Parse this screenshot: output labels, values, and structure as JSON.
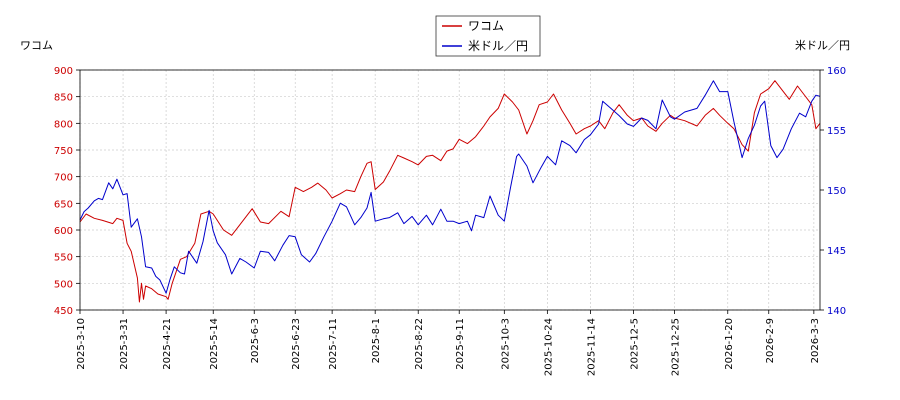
{
  "chart_data": {
    "type": "line",
    "left_axis_title": "ワコム",
    "right_axis_title": "米ドル／円",
    "legend": [
      "ワコム",
      "米ドル／円"
    ],
    "legend_placement": "top-center",
    "grid": true,
    "ylim_left": [
      450,
      900
    ],
    "yticks_left": [
      450,
      500,
      550,
      600,
      650,
      700,
      750,
      800,
      850,
      900
    ],
    "ylim_right": [
      140,
      160
    ],
    "yticks_right": [
      140,
      145,
      150,
      155,
      160
    ],
    "x_range": [
      "2025-03-10",
      "2026-03-06"
    ],
    "x_ticks": [
      "2025-3-10",
      "2025-3-31",
      "2025-4-21",
      "2025-5-14",
      "2025-6-3",
      "2025-6-23",
      "2025-7-11",
      "2025-8-1",
      "2025-8-22",
      "2025-9-11",
      "2025-10-3",
      "2025-10-24",
      "2025-11-14",
      "2025-12-5",
      "2025-12-25",
      "2026-1-20",
      "2026-2-9",
      "2026-3-3"
    ],
    "series": [
      {
        "name": "ワコム",
        "axis": "left",
        "color": "#cc0000",
        "points": [
          [
            "2025-03-10",
            615
          ],
          [
            "2025-03-13",
            630
          ],
          [
            "2025-03-17",
            622
          ],
          [
            "2025-03-21",
            618
          ],
          [
            "2025-03-26",
            612
          ],
          [
            "2025-03-28",
            622
          ],
          [
            "2025-03-31",
            618
          ],
          [
            "2025-04-02",
            575
          ],
          [
            "2025-04-04",
            560
          ],
          [
            "2025-04-07",
            510
          ],
          [
            "2025-04-08",
            465
          ],
          [
            "2025-04-09",
            500
          ],
          [
            "2025-04-10",
            470
          ],
          [
            "2025-04-11",
            495
          ],
          [
            "2025-04-14",
            490
          ],
          [
            "2025-04-17",
            480
          ],
          [
            "2025-04-21",
            475
          ],
          [
            "2025-04-22",
            470
          ],
          [
            "2025-04-24",
            500
          ],
          [
            "2025-04-28",
            545
          ],
          [
            "2025-05-01",
            550
          ],
          [
            "2025-05-05",
            575
          ],
          [
            "2025-05-08",
            630
          ],
          [
            "2025-05-12",
            635
          ],
          [
            "2025-05-14",
            630
          ],
          [
            "2025-05-19",
            600
          ],
          [
            "2025-05-23",
            590
          ],
          [
            "2025-05-27",
            610
          ],
          [
            "2025-06-02",
            640
          ],
          [
            "2025-06-06",
            615
          ],
          [
            "2025-06-10",
            612
          ],
          [
            "2025-06-16",
            635
          ],
          [
            "2025-06-20",
            625
          ],
          [
            "2025-06-23",
            680
          ],
          [
            "2025-06-27",
            672
          ],
          [
            "2025-07-01",
            680
          ],
          [
            "2025-07-04",
            688
          ],
          [
            "2025-07-08",
            675
          ],
          [
            "2025-07-11",
            660
          ],
          [
            "2025-07-15",
            668
          ],
          [
            "2025-07-18",
            675
          ],
          [
            "2025-07-22",
            672
          ],
          [
            "2025-07-25",
            700
          ],
          [
            "2025-07-28",
            725
          ],
          [
            "2025-07-30",
            728
          ],
          [
            "2025-08-01",
            676
          ],
          [
            "2025-08-05",
            690
          ],
          [
            "2025-08-08",
            710
          ],
          [
            "2025-08-12",
            740
          ],
          [
            "2025-08-15",
            735
          ],
          [
            "2025-08-19",
            728
          ],
          [
            "2025-08-22",
            722
          ],
          [
            "2025-08-26",
            738
          ],
          [
            "2025-08-29",
            740
          ],
          [
            "2025-09-02",
            730
          ],
          [
            "2025-09-05",
            748
          ],
          [
            "2025-09-08",
            752
          ],
          [
            "2025-09-11",
            770
          ],
          [
            "2025-09-15",
            762
          ],
          [
            "2025-09-19",
            775
          ],
          [
            "2025-09-23",
            795
          ],
          [
            "2025-09-26",
            812
          ],
          [
            "2025-09-30",
            828
          ],
          [
            "2025-10-03",
            855
          ],
          [
            "2025-10-07",
            840
          ],
          [
            "2025-10-10",
            825
          ],
          [
            "2025-10-14",
            780
          ],
          [
            "2025-10-17",
            805
          ],
          [
            "2025-10-20",
            835
          ],
          [
            "2025-10-24",
            840
          ],
          [
            "2025-10-27",
            855
          ],
          [
            "2025-10-31",
            825
          ],
          [
            "2025-11-04",
            800
          ],
          [
            "2025-11-07",
            780
          ],
          [
            "2025-11-11",
            790
          ],
          [
            "2025-11-14",
            795
          ],
          [
            "2025-11-18",
            805
          ],
          [
            "2025-11-21",
            790
          ],
          [
            "2025-11-25",
            820
          ],
          [
            "2025-11-28",
            835
          ],
          [
            "2025-12-02",
            815
          ],
          [
            "2025-12-05",
            805
          ],
          [
            "2025-12-09",
            810
          ],
          [
            "2025-12-12",
            795
          ],
          [
            "2025-12-16",
            785
          ],
          [
            "2025-12-19",
            800
          ],
          [
            "2025-12-23",
            815
          ],
          [
            "2025-12-25",
            810
          ],
          [
            "2025-12-30",
            805
          ],
          [
            "2026-01-05",
            795
          ],
          [
            "2026-01-09",
            815
          ],
          [
            "2026-01-13",
            828
          ],
          [
            "2026-01-16",
            815
          ],
          [
            "2026-01-20",
            800
          ],
          [
            "2026-01-23",
            790
          ],
          [
            "2026-01-27",
            760
          ],
          [
            "2026-01-30",
            748
          ],
          [
            "2026-02-02",
            820
          ],
          [
            "2026-02-05",
            855
          ],
          [
            "2026-02-09",
            865
          ],
          [
            "2026-02-12",
            880
          ],
          [
            "2026-02-16",
            860
          ],
          [
            "2026-02-19",
            845
          ],
          [
            "2026-02-23",
            870
          ],
          [
            "2026-02-26",
            855
          ],
          [
            "2026-03-02",
            835
          ],
          [
            "2026-03-04",
            790
          ],
          [
            "2026-03-06",
            800
          ]
        ]
      },
      {
        "name": "米ドル／円",
        "axis": "right",
        "color": "#0000cc",
        "points": [
          [
            "2025-03-10",
            147.5
          ],
          [
            "2025-03-12",
            148.2
          ],
          [
            "2025-03-14",
            148.5
          ],
          [
            "2025-03-17",
            149.1
          ],
          [
            "2025-03-19",
            149.3
          ],
          [
            "2025-03-21",
            149.2
          ],
          [
            "2025-03-24",
            150.6
          ],
          [
            "2025-03-26",
            150.1
          ],
          [
            "2025-03-28",
            150.9
          ],
          [
            "2025-03-31",
            149.6
          ],
          [
            "2025-04-02",
            149.7
          ],
          [
            "2025-04-04",
            146.9
          ],
          [
            "2025-04-07",
            147.6
          ],
          [
            "2025-04-09",
            146.1
          ],
          [
            "2025-04-11",
            143.6
          ],
          [
            "2025-04-14",
            143.5
          ],
          [
            "2025-04-16",
            142.8
          ],
          [
            "2025-04-18",
            142.5
          ],
          [
            "2025-04-21",
            141.4
          ],
          [
            "2025-04-23",
            142.6
          ],
          [
            "2025-04-25",
            143.6
          ],
          [
            "2025-04-28",
            143.1
          ],
          [
            "2025-04-30",
            143.0
          ],
          [
            "2025-05-02",
            144.9
          ],
          [
            "2025-05-06",
            143.9
          ],
          [
            "2025-05-09",
            145.7
          ],
          [
            "2025-05-12",
            148.3
          ],
          [
            "2025-05-14",
            146.6
          ],
          [
            "2025-05-16",
            145.6
          ],
          [
            "2025-05-20",
            144.6
          ],
          [
            "2025-05-23",
            143.0
          ],
          [
            "2025-05-27",
            144.3
          ],
          [
            "2025-05-30",
            144.0
          ],
          [
            "2025-06-03",
            143.5
          ],
          [
            "2025-06-06",
            144.9
          ],
          [
            "2025-06-10",
            144.8
          ],
          [
            "2025-06-13",
            144.1
          ],
          [
            "2025-06-17",
            145.4
          ],
          [
            "2025-06-20",
            146.2
          ],
          [
            "2025-06-23",
            146.1
          ],
          [
            "2025-06-26",
            144.6
          ],
          [
            "2025-06-30",
            144.0
          ],
          [
            "2025-07-03",
            144.7
          ],
          [
            "2025-07-07",
            146.1
          ],
          [
            "2025-07-11",
            147.4
          ],
          [
            "2025-07-15",
            148.9
          ],
          [
            "2025-07-18",
            148.6
          ],
          [
            "2025-07-22",
            147.1
          ],
          [
            "2025-07-25",
            147.7
          ],
          [
            "2025-07-28",
            148.5
          ],
          [
            "2025-07-30",
            149.8
          ],
          [
            "2025-08-01",
            147.4
          ],
          [
            "2025-08-05",
            147.6
          ],
          [
            "2025-08-08",
            147.7
          ],
          [
            "2025-08-12",
            148.1
          ],
          [
            "2025-08-15",
            147.2
          ],
          [
            "2025-08-19",
            147.8
          ],
          [
            "2025-08-22",
            147.1
          ],
          [
            "2025-08-26",
            147.9
          ],
          [
            "2025-08-29",
            147.1
          ],
          [
            "2025-09-02",
            148.4
          ],
          [
            "2025-09-05",
            147.4
          ],
          [
            "2025-09-08",
            147.4
          ],
          [
            "2025-09-11",
            147.2
          ],
          [
            "2025-09-15",
            147.4
          ],
          [
            "2025-09-17",
            146.6
          ],
          [
            "2025-09-19",
            147.9
          ],
          [
            "2025-09-23",
            147.7
          ],
          [
            "2025-09-26",
            149.5
          ],
          [
            "2025-09-30",
            147.9
          ],
          [
            "2025-10-03",
            147.4
          ],
          [
            "2025-10-06",
            150.2
          ],
          [
            "2025-10-09",
            152.8
          ],
          [
            "2025-10-10",
            153.0
          ],
          [
            "2025-10-14",
            152.0
          ],
          [
            "2025-10-17",
            150.6
          ],
          [
            "2025-10-21",
            151.9
          ],
          [
            "2025-10-24",
            152.8
          ],
          [
            "2025-10-28",
            152.1
          ],
          [
            "2025-10-31",
            154.1
          ],
          [
            "2025-11-04",
            153.7
          ],
          [
            "2025-11-07",
            153.1
          ],
          [
            "2025-11-11",
            154.2
          ],
          [
            "2025-11-14",
            154.6
          ],
          [
            "2025-11-18",
            155.5
          ],
          [
            "2025-11-20",
            157.4
          ],
          [
            "2025-11-24",
            156.8
          ],
          [
            "2025-11-28",
            156.2
          ],
          [
            "2025-12-02",
            155.5
          ],
          [
            "2025-12-05",
            155.3
          ],
          [
            "2025-12-09",
            156.0
          ],
          [
            "2025-12-12",
            155.8
          ],
          [
            "2025-12-16",
            155.1
          ],
          [
            "2025-12-19",
            157.5
          ],
          [
            "2025-12-23",
            156.1
          ],
          [
            "2025-12-25",
            155.9
          ],
          [
            "2025-12-30",
            156.5
          ],
          [
            "2026-01-05",
            156.8
          ],
          [
            "2026-01-09",
            157.9
          ],
          [
            "2026-01-13",
            159.1
          ],
          [
            "2026-01-16",
            158.2
          ],
          [
            "2026-01-20",
            158.2
          ],
          [
            "2026-01-23",
            155.7
          ],
          [
            "2026-01-27",
            152.7
          ],
          [
            "2026-01-30",
            154.3
          ],
          [
            "2026-02-02",
            155.4
          ],
          [
            "2026-02-05",
            157.0
          ],
          [
            "2026-02-07",
            157.4
          ],
          [
            "2026-02-10",
            153.7
          ],
          [
            "2026-02-13",
            152.7
          ],
          [
            "2026-02-16",
            153.4
          ],
          [
            "2026-02-20",
            155.1
          ],
          [
            "2026-02-24",
            156.4
          ],
          [
            "2026-02-27",
            156.1
          ],
          [
            "2026-03-02",
            157.4
          ],
          [
            "2026-03-04",
            157.9
          ],
          [
            "2026-03-06",
            157.8
          ]
        ]
      }
    ]
  }
}
